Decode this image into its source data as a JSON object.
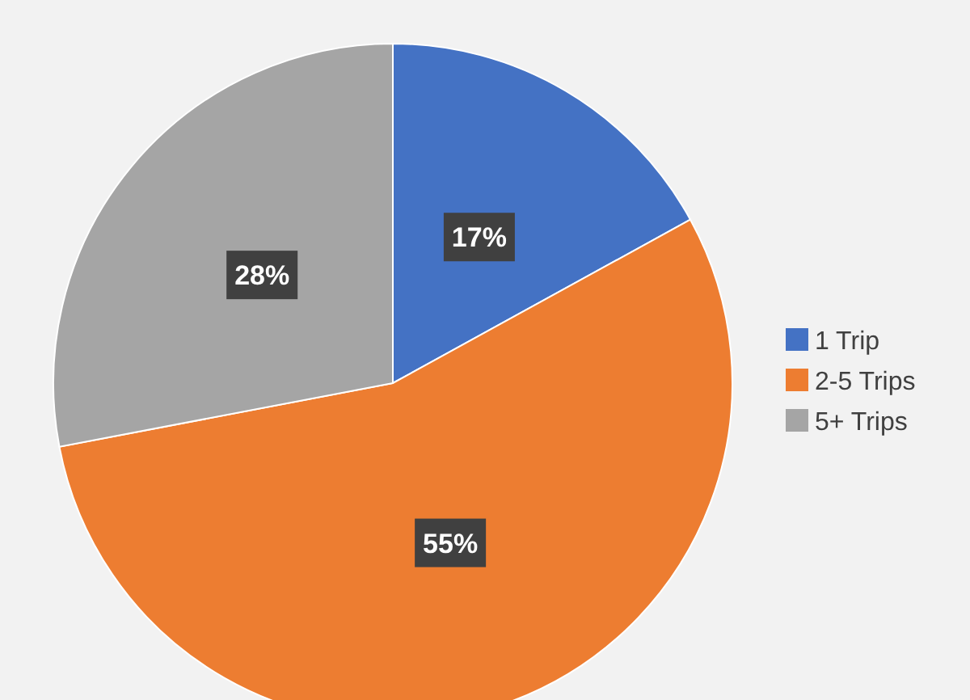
{
  "chart_data": {
    "type": "pie",
    "categories": [
      "1 Trip",
      "2-5 Trips",
      "5+ Trips"
    ],
    "values": [
      17,
      55,
      28
    ],
    "colors": [
      "#4472c4",
      "#ed7d31",
      "#a5a5a5"
    ],
    "value_labels": [
      "17%",
      "55%",
      "28%"
    ],
    "legend": "right"
  }
}
